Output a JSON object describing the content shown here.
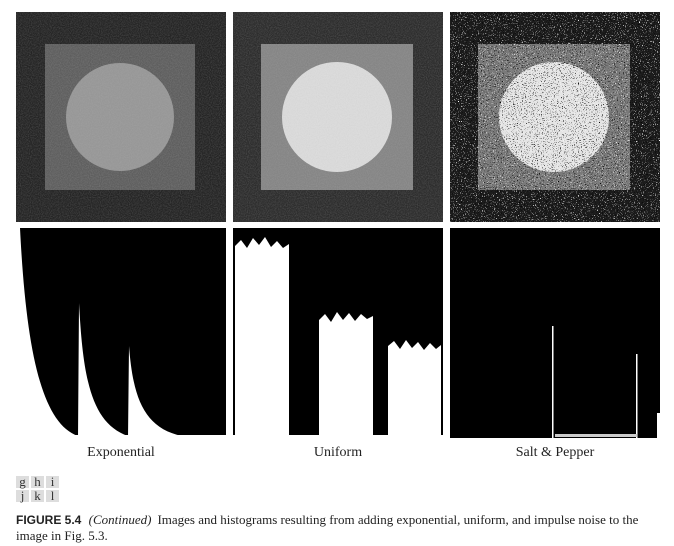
{
  "panels": [
    {
      "label": "Exponential"
    },
    {
      "label": "Uniform"
    },
    {
      "label": "Salt & Pepper"
    }
  ],
  "panel_keys": [
    [
      "g",
      "h",
      "i"
    ],
    [
      "j",
      "k",
      "l"
    ]
  ],
  "caption": {
    "figure": "FIGURE 5.4",
    "note": "(Continued)",
    "text": "Images and histograms resulting from adding exponential, uniform, and impulse noise to the image in Fig. 5.3."
  }
}
